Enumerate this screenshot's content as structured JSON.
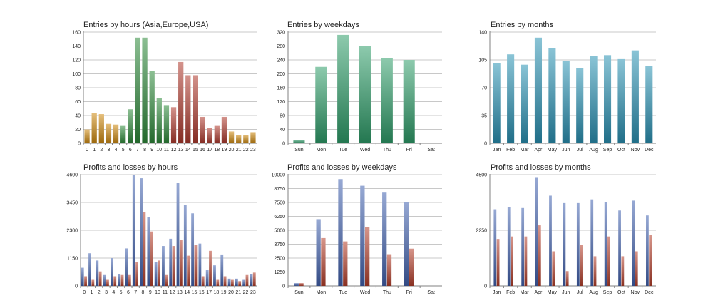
{
  "colors": {
    "orange": "#d08a10",
    "green": "#2e8a3a",
    "red": "#b03a2e",
    "mint": "#2f9f6a",
    "cyan": "#2a93b5",
    "blue": "#4263b0",
    "loss": "#b6402c"
  },
  "chart_data": [
    {
      "type": "bar",
      "title": "Entries by hours (Asia,Europe,USA)",
      "categories": [
        "0",
        "1",
        "2",
        "3",
        "4",
        "5",
        "6",
        "7",
        "8",
        "9",
        "10",
        "11",
        "12",
        "13",
        "14",
        "15",
        "16",
        "17",
        "18",
        "19",
        "20",
        "21",
        "22",
        "23"
      ],
      "values": [
        20,
        44,
        42,
        28,
        27,
        25,
        49,
        152,
        152,
        104,
        65,
        55,
        52,
        117,
        98,
        98,
        38,
        22,
        25,
        38,
        17,
        12,
        12,
        16
      ],
      "bar_colors": [
        "orange",
        "orange",
        "orange",
        "orange",
        "orange",
        "green",
        "green",
        "green",
        "green",
        "green",
        "green",
        "green",
        "red",
        "red",
        "red",
        "red",
        "red",
        "red",
        "red",
        "red",
        "orange",
        "orange",
        "orange",
        "orange"
      ],
      "ylim": [
        0,
        160
      ],
      "yticks": [
        "0",
        "20",
        "40",
        "60",
        "80",
        "100",
        "120",
        "140",
        "160"
      ],
      "grid": true
    },
    {
      "type": "bar",
      "title": "Entries by weekdays",
      "categories": [
        "Sun",
        "Mon",
        "Tue",
        "Wed",
        "Thu",
        "Fri",
        "Sat"
      ],
      "values": [
        10,
        220,
        312,
        280,
        245,
        240,
        0
      ],
      "bar_colors": [
        "mint",
        "mint",
        "mint",
        "mint",
        "mint",
        "mint",
        "mint"
      ],
      "ylim": [
        0,
        320
      ],
      "yticks": [
        "0",
        "40",
        "80",
        "120",
        "160",
        "200",
        "240",
        "280",
        "320"
      ],
      "grid": true
    },
    {
      "type": "bar",
      "title": "Entries by months",
      "categories": [
        "Jan",
        "Feb",
        "Mar",
        "Apr",
        "May",
        "Jun",
        "Jul",
        "Aug",
        "Sep",
        "Oct",
        "Nov",
        "Dec"
      ],
      "values": [
        101,
        112,
        99,
        133,
        120,
        104,
        95,
        110,
        111,
        106,
        117,
        97
      ],
      "bar_colors": [
        "cyan",
        "cyan",
        "cyan",
        "cyan",
        "cyan",
        "cyan",
        "cyan",
        "cyan",
        "cyan",
        "cyan",
        "cyan",
        "cyan"
      ],
      "ylim": [
        0,
        140
      ],
      "yticks": [
        "0",
        "35",
        "70",
        "105",
        "140"
      ],
      "grid": true
    },
    {
      "type": "bar",
      "title": "Profits and losses by hours",
      "categories": [
        "0",
        "1",
        "2",
        "3",
        "4",
        "5",
        "6",
        "7",
        "8",
        "9",
        "10",
        "11",
        "12",
        "13",
        "14",
        "15",
        "16",
        "17",
        "18",
        "19",
        "20",
        "21",
        "22",
        "23"
      ],
      "series": [
        {
          "values": [
            750,
            1350,
            1050,
            450,
            1150,
            500,
            1550,
            4600,
            4450,
            2850,
            1000,
            1650,
            1950,
            4250,
            3350,
            3000,
            1750,
            650,
            850,
            1300,
            300,
            300,
            250,
            500
          ]
        },
        {
          "values": [
            400,
            250,
            600,
            250,
            400,
            450,
            450,
            1000,
            3050,
            2250,
            1050,
            450,
            1650,
            1900,
            1250,
            1700,
            400,
            1450,
            250,
            400,
            250,
            200,
            450,
            550
          ]
        }
      ],
      "series_colors": [
        "blue",
        "loss"
      ],
      "ylim": [
        0,
        4600
      ],
      "yticks": [
        "0",
        "1150",
        "2300",
        "3450",
        "4600"
      ],
      "grid": true
    },
    {
      "type": "bar",
      "title": "Profits and losses by weekdays",
      "categories": [
        "Sun",
        "Mon",
        "Tue",
        "Wed",
        "Thu",
        "Fri",
        "Sat"
      ],
      "series": [
        {
          "values": [
            250,
            6000,
            9600,
            9000,
            8450,
            7550,
            0
          ]
        },
        {
          "values": [
            250,
            4300,
            4000,
            5300,
            2850,
            3350,
            0
          ]
        }
      ],
      "series_colors": [
        "blue",
        "loss"
      ],
      "ylim": [
        0,
        10000
      ],
      "yticks": [
        "0",
        "1250",
        "2500",
        "3750",
        "5000",
        "6250",
        "7500",
        "8750",
        "10000"
      ],
      "grid": true
    },
    {
      "type": "bar",
      "title": "Profits and losses by months",
      "categories": [
        "Jan",
        "Feb",
        "Mar",
        "Apr",
        "May",
        "Jun",
        "Jul",
        "Aug",
        "Sep",
        "Oct",
        "Nov",
        "Dec"
      ],
      "series": [
        {
          "values": [
            3100,
            3200,
            3150,
            4400,
            3650,
            3350,
            3350,
            3500,
            3400,
            3050,
            3450,
            2850
          ]
        },
        {
          "values": [
            1900,
            2000,
            2000,
            2450,
            1400,
            600,
            1650,
            1200,
            2000,
            1200,
            1400,
            2050
          ]
        }
      ],
      "series_colors": [
        "blue",
        "loss"
      ],
      "ylim": [
        0,
        4500
      ],
      "yticks": [
        "0",
        "2250",
        "4500"
      ],
      "grid": true
    }
  ]
}
